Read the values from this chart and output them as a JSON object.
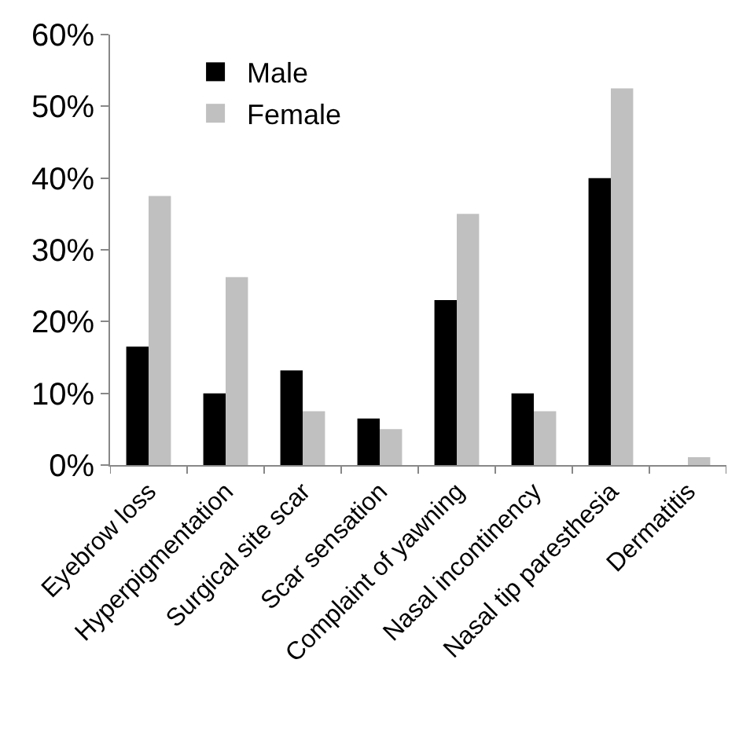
{
  "chart_data": {
    "type": "bar",
    "categories": [
      "Eyebrow loss",
      "Hyperpigmentation",
      "Surgical site scar",
      "Scar sensation",
      "Complaint of yawning",
      "Nasal incontinency",
      "Nasal tip paresthesia",
      "Dermatitis"
    ],
    "series": [
      {
        "name": "Male",
        "color": "#000000",
        "values": [
          16.5,
          10,
          13.2,
          6.5,
          23,
          10,
          40,
          0
        ]
      },
      {
        "name": "Female",
        "color": "#c0c0c0",
        "values": [
          37.5,
          26.2,
          7.5,
          5,
          35,
          7.5,
          52.5,
          1.1
        ]
      }
    ],
    "ylim": [
      0,
      60
    ],
    "yticks": [
      {
        "value": 0,
        "label": "0%"
      },
      {
        "value": 10,
        "label": "10%"
      },
      {
        "value": 20,
        "label": "20%"
      },
      {
        "value": 30,
        "label": "30%"
      },
      {
        "value": 40,
        "label": "40%"
      },
      {
        "value": 50,
        "label": "50%"
      },
      {
        "value": 60,
        "label": "60%"
      }
    ],
    "legend": "top left"
  }
}
